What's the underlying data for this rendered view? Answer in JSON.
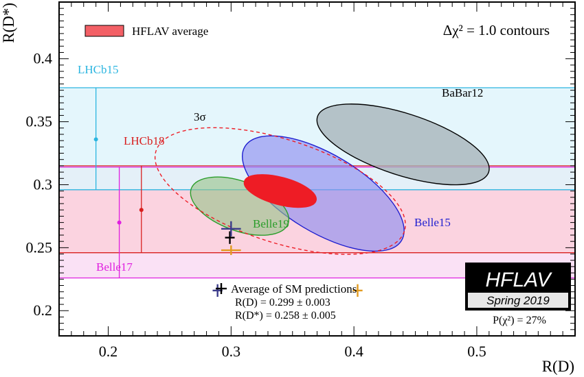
{
  "chart_data": {
    "type": "scatter",
    "xlabel": "R(D)",
    "ylabel": "R(D*)",
    "xlim": [
      0.16,
      0.58
    ],
    "ylim": [
      0.18,
      0.445
    ],
    "x_ticks": [
      0.2,
      0.3,
      0.4,
      0.5
    ],
    "x_tick_labels": [
      "0.2",
      "0.3",
      "0.4",
      "0.5"
    ],
    "y_ticks": [
      0.2,
      0.25,
      0.3,
      0.35,
      0.4
    ],
    "y_tick_labels": [
      "0.2",
      "0.25",
      "0.3",
      "0.35",
      "0.4"
    ],
    "grid": false,
    "contour_label": "Δχ² = 1.0 contours",
    "legend": {
      "position": "top-left",
      "label": "HFLAV average",
      "color": "#ee1c25"
    },
    "bands": [
      {
        "name": "LHCb15",
        "y": 0.336,
        "ymin": 0.296,
        "ymax": 0.377,
        "color": "#2bb5e0",
        "fill": "#dff4fb",
        "marker_x": 0.19
      },
      {
        "name": "LHCb18",
        "y": 0.28,
        "ymin": 0.246,
        "ymax": 0.315,
        "color": "#d81e1e",
        "fill": "#fad0dc",
        "marker_x": 0.227
      },
      {
        "name": "Belle17",
        "y": 0.27,
        "ymin": 0.226,
        "ymax": 0.314,
        "color": "#e020e0",
        "fill": "#f9dcf3",
        "marker_x": 0.209
      }
    ],
    "ellipses": [
      {
        "name": "BaBar12",
        "center": [
          0.44,
          0.332
        ],
        "color": "#000000",
        "fill": "#a7b3b8"
      },
      {
        "name": "Belle15",
        "center": [
          0.375,
          0.293
        ],
        "color": "#1f1fd0",
        "fill": "#8f8ff0"
      },
      {
        "name": "Belle19",
        "center": [
          0.307,
          0.283
        ],
        "color": "#2a9d2a",
        "fill": "#98c48a"
      },
      {
        "name": "HFLAV average",
        "center": [
          0.34,
          0.295
        ],
        "color": "#ee1c25",
        "fill": "#ee1c25"
      },
      {
        "name": "3σ",
        "center": [
          0.34,
          0.295
        ],
        "color": "#ee1c25",
        "style": "dashed"
      }
    ],
    "sm_predictions": [
      {
        "x": 0.299,
        "y": 0.258,
        "xerr": 0.003,
        "yerr": 0.005,
        "color": "#000000"
      },
      {
        "x": 0.3,
        "y": 0.265,
        "xerr": 0.008,
        "yerr": 0.006,
        "color": "#3b3b8a"
      },
      {
        "x": 0.3,
        "y": 0.248,
        "xerr": 0.008,
        "yerr": 0.002,
        "color": "#e29a1e"
      },
      {
        "x": 0.289,
        "y": 0.216,
        "xerr": 0.004,
        "yerr": 0.005,
        "color": "#3b3b8a"
      },
      {
        "x": 0.403,
        "y": 0.216,
        "xerr": 0.004,
        "yerr": 0.005,
        "color": "#e29a1e"
      }
    ],
    "sm_legend": {
      "title": "Average of SM predictions",
      "rd_text": "R(D) = 0.299 ± 0.003",
      "rds_text": "R(D*) = 0.258 ± 0.005"
    },
    "logo": {
      "name": "HFLAV",
      "subtitle": "Spring 2019"
    },
    "pchi2_text": "P(χ²) = 27%"
  }
}
